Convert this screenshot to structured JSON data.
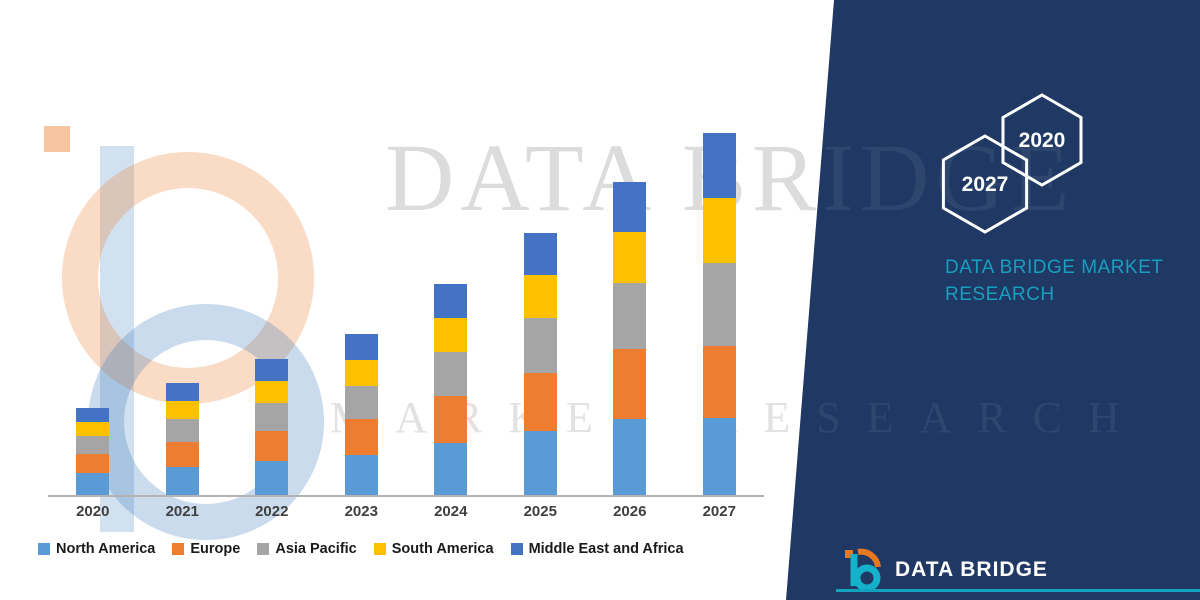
{
  "watermark": {
    "brand": "DATA BRIDGE",
    "tagline": "MARKET RESEARCH"
  },
  "chart_data": {
    "type": "bar",
    "stacked": true,
    "title": "",
    "xlabel": "",
    "ylabel": "",
    "units": "relative (no y-axis shown)",
    "grid": false,
    "legend_position": "bottom",
    "ylim": [
      0,
      377
    ],
    "categories": [
      "2020",
      "2021",
      "2022",
      "2023",
      "2024",
      "2025",
      "2026",
      "2027"
    ],
    "series": [
      {
        "name": "North America",
        "color": "#5B9BD5",
        "values": [
          22,
          28,
          34,
          40,
          52,
          64,
          76,
          77
        ]
      },
      {
        "name": "Europe",
        "color": "#ED7D31",
        "values": [
          19,
          25,
          30,
          36,
          47,
          58,
          70,
          72
        ]
      },
      {
        "name": "Asia Pacific",
        "color": "#A5A5A5",
        "values": [
          18,
          23,
          28,
          33,
          44,
          55,
          66,
          83
        ]
      },
      {
        "name": "South America",
        "color": "#FFC000",
        "values": [
          14,
          18,
          22,
          26,
          34,
          43,
          51,
          65
        ]
      },
      {
        "name": "Middle East and Africa",
        "color": "#4472C4",
        "values": [
          14,
          18,
          22,
          26,
          34,
          42,
          50,
          65
        ]
      }
    ]
  },
  "right_panel": {
    "hexagons": [
      {
        "label": "2027"
      },
      {
        "label": "2020"
      }
    ],
    "brand_title": "DATA BRIDGE MARKET RESEARCH",
    "footer_brand": "DATA BRIDGE"
  },
  "colors": {
    "panel_bg": "#1F3864",
    "accent_teal": "#13A3BF",
    "axis_line": "#B3B3B3",
    "label_text": "#3F3F3F"
  }
}
